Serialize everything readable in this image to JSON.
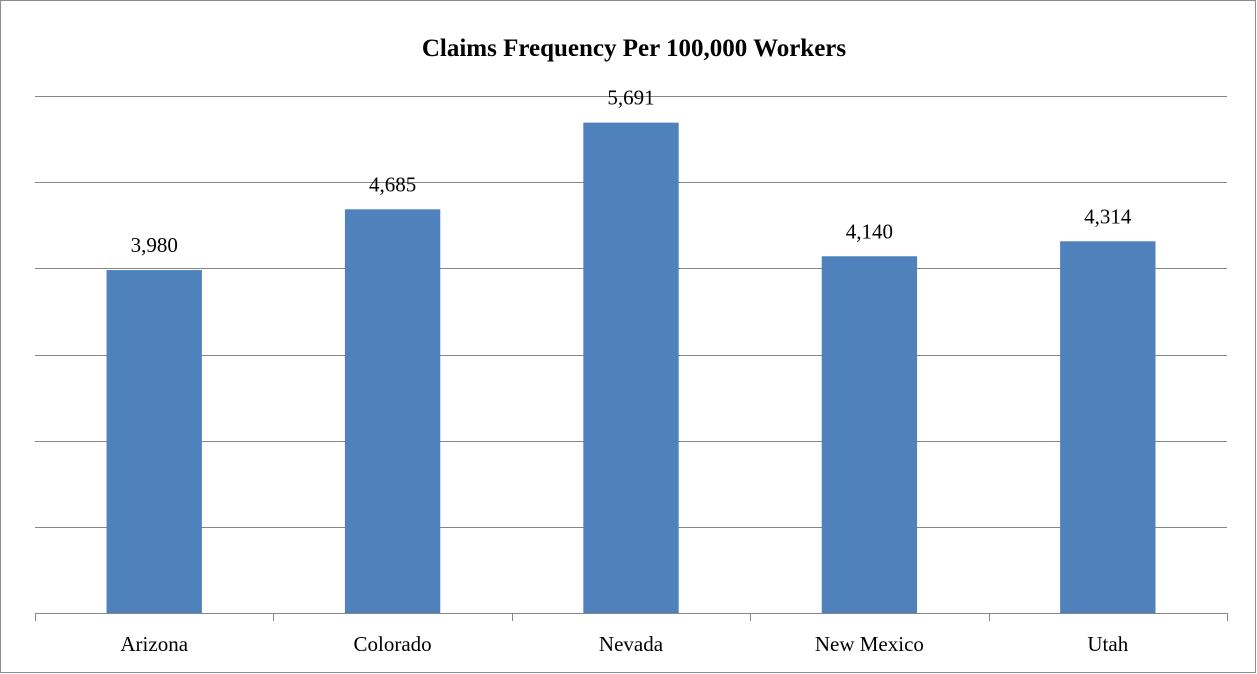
{
  "chart_data": {
    "type": "bar",
    "title": "Claims Frequency Per 100,000 Workers",
    "categories": [
      "Arizona",
      "Colorado",
      "Nevada",
      "New Mexico",
      "Utah"
    ],
    "values": [
      3980,
      4685,
      5691,
      4140,
      4314
    ],
    "value_labels": [
      "3,980",
      "4,685",
      "5,691",
      "4,140",
      "4,314"
    ],
    "xlabel": "",
    "ylabel": "",
    "ylim": [
      0,
      6000
    ],
    "y_gridline_step": 1000,
    "y_tick_labels_visible": false,
    "grid": true,
    "legend": "none",
    "colors": {
      "bar": "#4f81bd",
      "gridline": "#868686",
      "axis": "#868686",
      "border": "#8c8c8c"
    }
  }
}
